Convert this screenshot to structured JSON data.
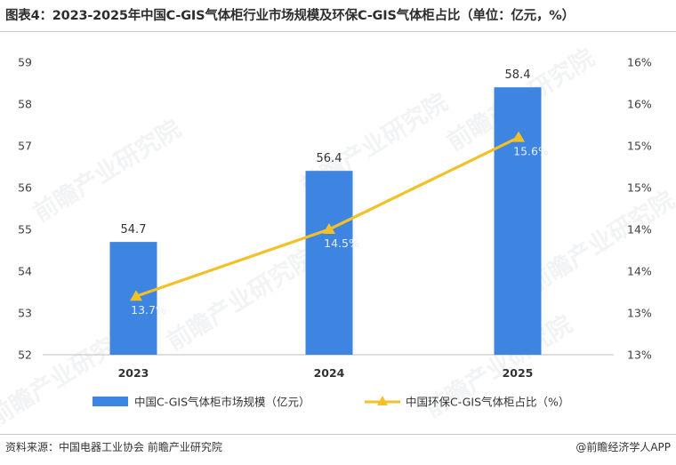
{
  "title": "图表4：2023-2025年中国C-GIS气体柜行业市场规模及环保C-GIS气体柜占比（单位：亿元，%）",
  "source": "资料来源：中国电器工业协会  前瞻产业研究院",
  "footer_brand": "@前瞻经济学人APP",
  "watermark": "前瞻产业研究院",
  "colors": {
    "bar": "#3d85e0",
    "line": "#f2c128",
    "axis_text": "#404040",
    "rate_label_on_bar": "#e8eefa"
  },
  "chart_data": {
    "type": "bar",
    "categories": [
      "2023",
      "2024",
      "2025"
    ],
    "series": [
      {
        "name": "中国C-GIS气体柜市场规模（亿元）",
        "type": "bar",
        "axis": "left",
        "values": [
          54.7,
          56.4,
          58.4
        ],
        "labels": [
          "54.7",
          "56.4",
          "58.4"
        ]
      },
      {
        "name": "中国环保C-GIS气体柜占比（%）",
        "type": "line",
        "axis": "right",
        "values": [
          13.7,
          14.5,
          15.6
        ],
        "labels": [
          "13.7%",
          "14.5%",
          "15.6%"
        ]
      }
    ],
    "y_left": {
      "ylim": [
        52,
        59
      ],
      "ticks": [
        "52",
        "53",
        "54",
        "55",
        "56",
        "57",
        "58",
        "59"
      ]
    },
    "y_right": {
      "ylim": [
        13,
        16.5
      ],
      "ticks": [
        "13%",
        "13%",
        "14%",
        "14%",
        "15%",
        "15%",
        "16%",
        "16%"
      ]
    },
    "grid": false,
    "legend_position": "bottom"
  }
}
